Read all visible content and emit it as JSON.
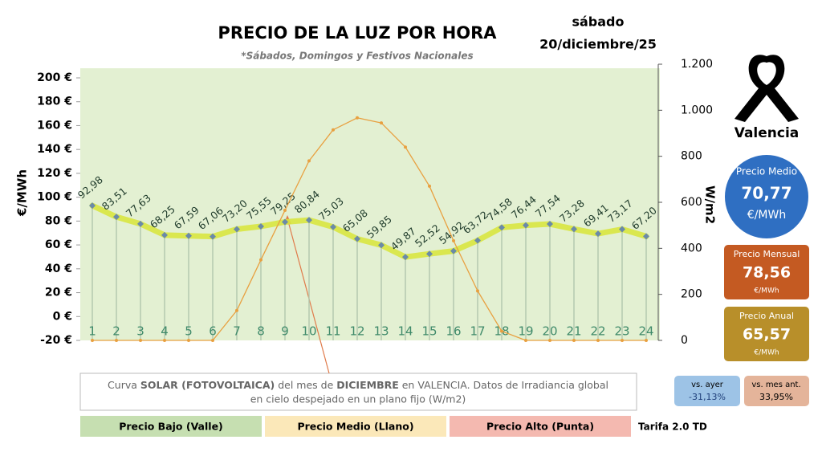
{
  "chart_data": {
    "type": "line",
    "title": "PRECIO DE LA LUZ POR HORA",
    "subtitle": "*Sábados, Domingos y Festivos Nacionales",
    "ylabel": "€/MWh",
    "y2label": "W/m2",
    "categories": [
      1,
      2,
      3,
      4,
      5,
      6,
      7,
      8,
      9,
      10,
      11,
      12,
      13,
      14,
      15,
      16,
      17,
      18,
      19,
      20,
      21,
      22,
      23,
      24
    ],
    "series": [
      {
        "name": "Precio",
        "color": "#d8e640",
        "values": [
          92.98,
          83.51,
          77.63,
          68.25,
          67.59,
          67.06,
          73.2,
          75.55,
          79.25,
          80.84,
          75.03,
          65.08,
          59.85,
          49.87,
          52.52,
          54.92,
          63.72,
          74.58,
          76.44,
          77.54,
          73.28,
          69.41,
          73.17,
          67.2
        ],
        "value_labels": [
          "92,98",
          "83,51",
          "77,63",
          "68,25",
          "67,59",
          "67,06",
          "73,20",
          "75,55",
          "79,25",
          "80,84",
          "75,03",
          "65,08",
          "59,85",
          "49,87",
          "52,52",
          "54,92",
          "63,72",
          "74,58",
          "76,44",
          "77,54",
          "73,28",
          "69,41",
          "73,17",
          "67,20"
        ]
      },
      {
        "name": "Solar",
        "color": "#e8a040",
        "axis": "y2",
        "values": [
          0,
          0,
          0,
          0,
          0,
          0,
          130,
          350,
          565,
          780,
          915,
          967,
          945,
          840,
          670,
          433,
          215,
          40,
          0,
          0,
          0,
          0,
          0,
          0
        ]
      }
    ],
    "ylim": [
      -20,
      200
    ],
    "yticks": [
      {
        "value": 200,
        "label": "200 €"
      },
      {
        "value": 180,
        "label": "180 €"
      },
      {
        "value": 160,
        "label": "160 €"
      },
      {
        "value": 140,
        "label": "140 €"
      },
      {
        "value": 120,
        "label": "120 €"
      },
      {
        "value": 100,
        "label": "100 €"
      },
      {
        "value": 80,
        "label": "80 €"
      },
      {
        "value": 60,
        "label": "60 €"
      },
      {
        "value": 40,
        "label": "40 €"
      },
      {
        "value": 20,
        "label": "20 €"
      },
      {
        "value": 0,
        "label": "0 €"
      },
      {
        "value": -20,
        "label": "-20 €"
      }
    ],
    "y2lim": [
      0,
      1200
    ],
    "y2ticks": [
      {
        "value": 1200,
        "label": "1.200"
      },
      {
        "value": 1000,
        "label": "1.000"
      },
      800,
      600,
      400,
      200,
      0
    ]
  },
  "header": {
    "day": "sábado",
    "date": "20/diciembre/25"
  },
  "panel": {
    "city": "Valencia",
    "average": {
      "label": "Precio Medio",
      "value": "70,77",
      "unit": "€/MWh"
    },
    "monthly": {
      "label": "Precio Mensual",
      "value": "78,56",
      "unit": "€/MWh"
    },
    "yearly": {
      "label": "Precio Anual",
      "value": "65,57",
      "unit": "€/MWh"
    },
    "vs_yesterday": {
      "label": "vs. ayer",
      "value": "-31,13%"
    },
    "vs_last_month": {
      "label": "vs. mes ant.",
      "value": "33,95%"
    }
  },
  "note": {
    "parts": [
      "Curva ",
      "SOLAR (FOTOVOLTAICA)",
      " del mes de ",
      "DICIEMBRE",
      " en VALENCIA. Datos de Irradiancia global",
      "en cielo despejado en un plano fijo (W/m2)"
    ]
  },
  "legend": {
    "low": "Precio Bajo (Valle)",
    "mid": "Precio Medio (Llano)",
    "high": "Precio Alto (Punta)",
    "tariff": "Tarifa 2.0 TD"
  }
}
